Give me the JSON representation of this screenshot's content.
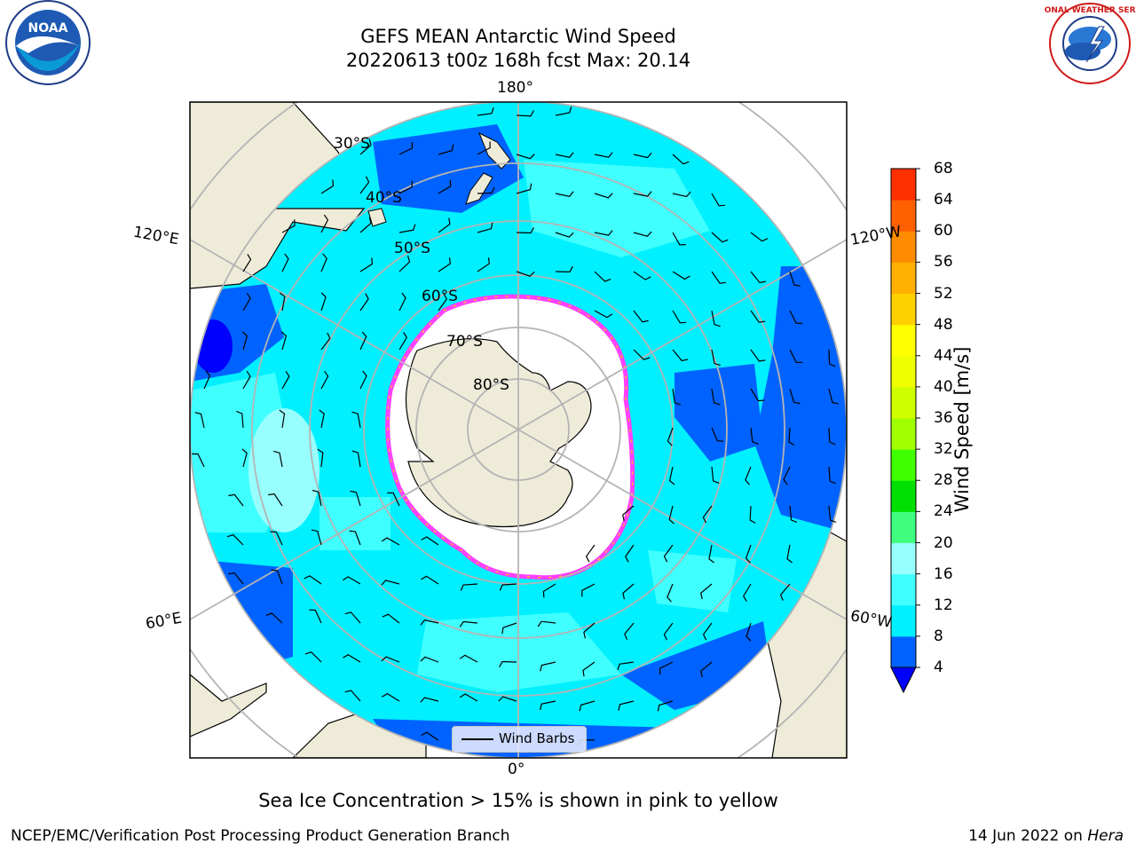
{
  "title": {
    "line1": "GEFS MEAN Antarctic Wind Speed",
    "line2": "20220613 t00z 168h fcst   Max: 20.14"
  },
  "logos": {
    "left": {
      "icon": "noaa-logo",
      "text": "NOAA"
    },
    "right": {
      "icon": "national-weather-service-logo",
      "text": "NATIONAL WEATHER SERVICE"
    }
  },
  "map": {
    "projection": "south-polar-stereographic",
    "longitude_labels": {
      "top": "180°",
      "bottom": "0°",
      "upper_left": "120°E",
      "upper_right": "120°W",
      "lower_left": "60°E",
      "lower_right": "60°W"
    },
    "latitude_labels": [
      "30°S",
      "40°S",
      "50°S",
      "60°S",
      "70°S",
      "80°S"
    ],
    "legend": {
      "entry": "Wind Barbs"
    },
    "colors": {
      "land": "#eeecd9",
      "ice_shelf": "#ffffff",
      "sea_ice_edge": "#ff40ff",
      "grid": "#b4b4b4"
    }
  },
  "colorbar": {
    "label": "Wind Speed [m/s]",
    "ticks": [
      "4",
      "8",
      "12",
      "16",
      "20",
      "24",
      "28",
      "32",
      "36",
      "40",
      "44",
      "48",
      "52",
      "56",
      "60",
      "64",
      "68"
    ],
    "colors": [
      "#0063ff",
      "#00f0ff",
      "#40ffff",
      "#98ffff",
      "#40ff80",
      "#00e000",
      "#40ff00",
      "#a0ff00",
      "#d0ff00",
      "#f0ff00",
      "#ffff00",
      "#ffd000",
      "#ffb000",
      "#ff8c00",
      "#ff6000",
      "#ff3000",
      "#ff0000"
    ],
    "under_color": "#0000ff"
  },
  "caption": "Sea Ice Concentration > 15% is shown in pink to yellow",
  "footer": {
    "left": "NCEP/EMC/Verification Post Processing Product Generation Branch",
    "right_date": "14 Jun 2022 on ",
    "right_machine": "Hera"
  }
}
